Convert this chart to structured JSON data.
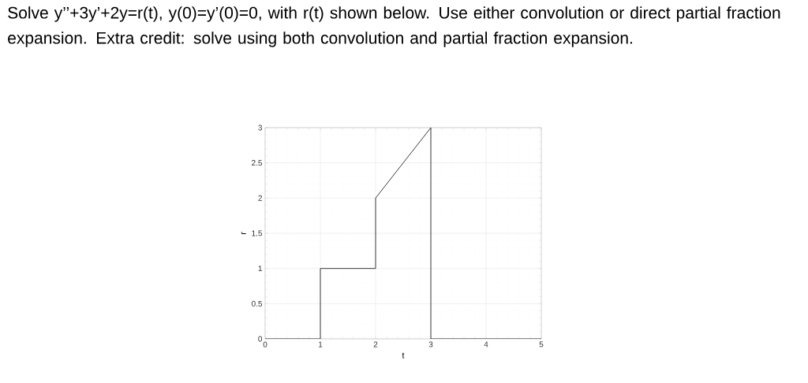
{
  "chart_data": {
    "type": "line",
    "title": "Solve y’’+3y’+2y=r(t), y(0)=y’(0)=0, with r(t) shown below. Use either convolution or direct partial fraction expansion. Extra credit: solve using both convolution and partial fraction expansion.",
    "xlabel": "t",
    "ylabel": "r",
    "series": [
      {
        "color": "#262626",
        "x": [
          0,
          1,
          1,
          2,
          2,
          3,
          3,
          5
        ],
        "values": [
          0,
          0,
          1,
          1,
          2,
          3,
          0,
          0
        ]
      }
    ],
    "xlim": [
      0,
      5
    ],
    "ylim": [
      0,
      3
    ],
    "xticks": [
      0,
      1,
      2,
      3,
      4,
      5
    ],
    "yticks": [
      0,
      0.5,
      1,
      1.5,
      2,
      2.5,
      3
    ],
    "grid": true,
    "marker": "none",
    "line_style": "solid"
  }
}
